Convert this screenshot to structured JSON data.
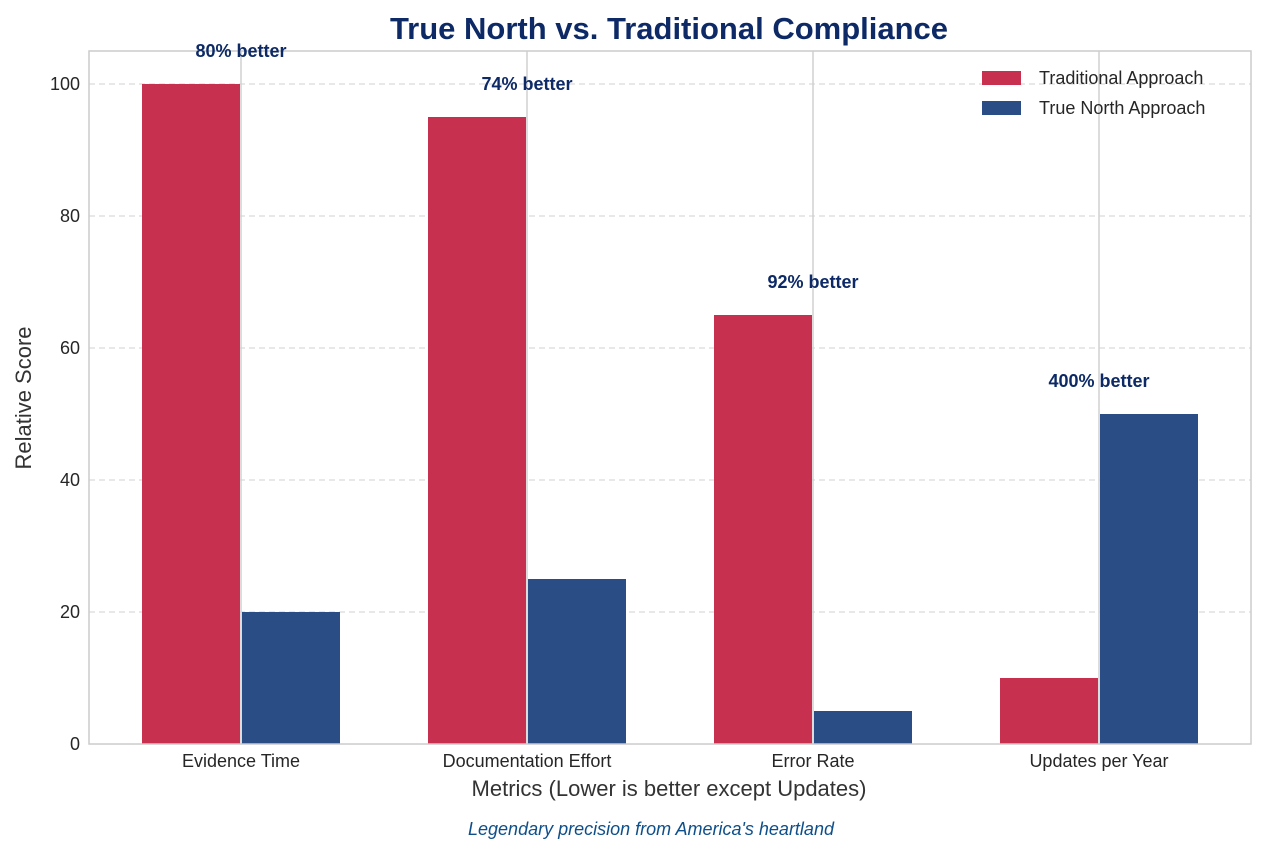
{
  "chart_data": {
    "type": "bar",
    "title": "True North vs. Traditional Compliance",
    "xlabel": "Metrics (Lower is better except Updates)",
    "ylabel": "Relative Score",
    "caption": "Legendary precision from America's heartland",
    "categories": [
      "Evidence Time",
      "Documentation Effort",
      "Error Rate",
      "Updates per Year"
    ],
    "series": [
      {
        "name": "Traditional Approach",
        "values": [
          100,
          95,
          65,
          10
        ],
        "color": "#c8304f"
      },
      {
        "name": "True North Approach",
        "values": [
          20,
          25,
          5,
          50
        ],
        "color": "#2a4d85"
      }
    ],
    "annotations": [
      {
        "text": "80% better",
        "y": 105
      },
      {
        "text": "74% better",
        "y": 100
      },
      {
        "text": "92% better",
        "y": 70
      },
      {
        "text": "400% better",
        "y": 55
      }
    ],
    "ylim": [
      0,
      105
    ],
    "yticks": [
      0,
      20,
      40,
      60,
      80,
      100
    ],
    "grid": "y-dashed",
    "legend_position": "top-right"
  }
}
